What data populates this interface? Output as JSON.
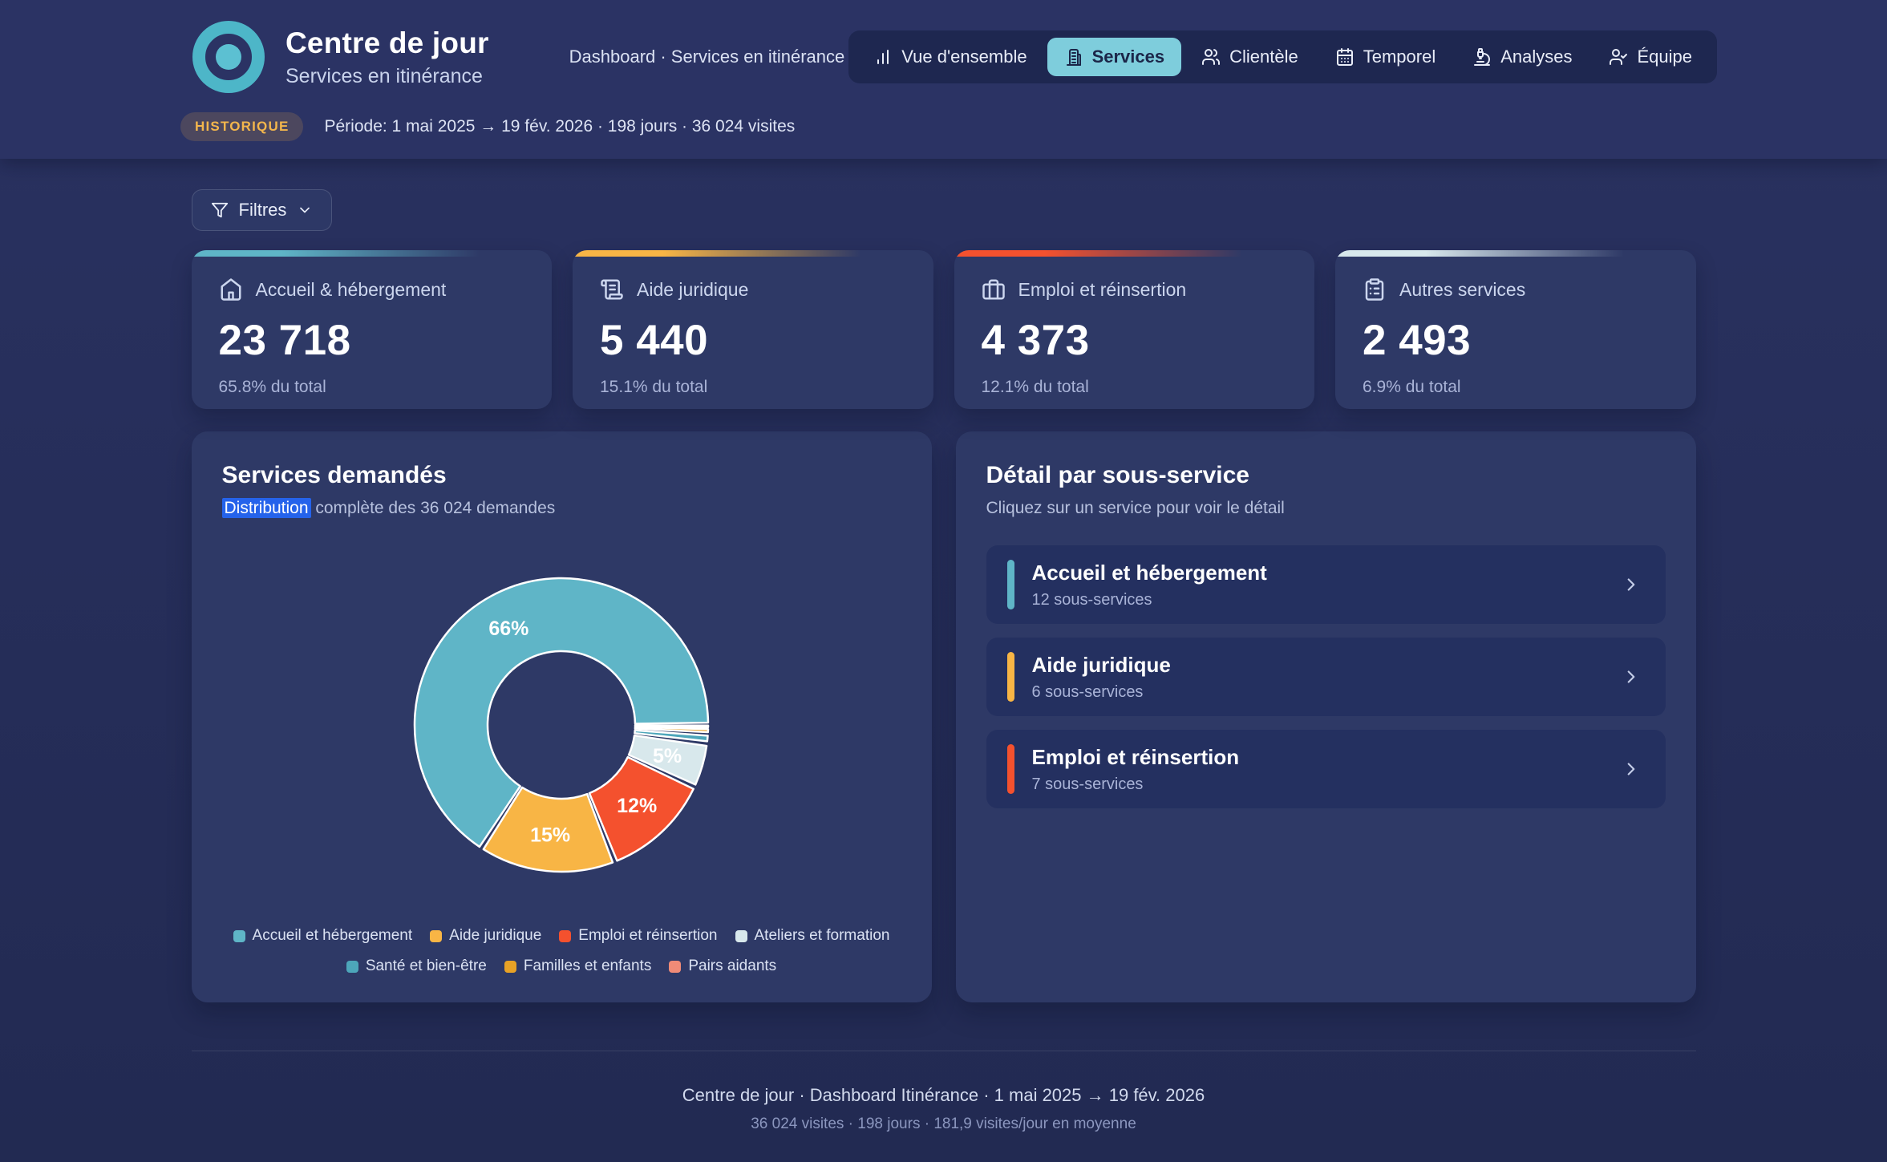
{
  "header": {
    "app_title": "Centre de jour",
    "app_subtitle": "Services en itinérance",
    "breadcrumb": "Dashboard · Services en itinérance",
    "nav": [
      {
        "label": "Vue d'ensemble",
        "icon": "bar-chart-icon",
        "active": false
      },
      {
        "label": "Services",
        "icon": "building-icon",
        "active": true
      },
      {
        "label": "Clientèle",
        "icon": "users-icon",
        "active": false
      },
      {
        "label": "Temporel",
        "icon": "calendar-icon",
        "active": false
      },
      {
        "label": "Analyses",
        "icon": "microscope-icon",
        "active": false
      },
      {
        "label": "Équipe",
        "icon": "user-check-icon",
        "active": false
      }
    ],
    "badge": "HISTORIQUE",
    "period": "Période: 1 mai 2025 → 19 fév. 2026 · 198 jours · 36 024 visites"
  },
  "filters": {
    "label": "Filtres"
  },
  "stat_cards": [
    {
      "label": "Accueil & hébergement",
      "value": "23 718",
      "share": "65.8% du total",
      "accent": "#5fb5c7",
      "icon": "home-icon"
    },
    {
      "label": "Aide juridique",
      "value": "5 440",
      "share": "15.1% du total",
      "accent": "#f8b545",
      "icon": "scroll-icon"
    },
    {
      "label": "Emploi et réinsertion",
      "value": "4 373",
      "share": "12.1% du total",
      "accent": "#f4512e",
      "icon": "briefcase-icon"
    },
    {
      "label": "Autres services",
      "value": "2 493",
      "share": "6.9% du total",
      "accent": "#d8e8ec",
      "icon": "clipboard-icon"
    }
  ],
  "services_chart": {
    "title": "Services demandés",
    "subtitle_highlight": "Distribution",
    "subtitle_rest": " complète des 36 024 demandes"
  },
  "chart_data": {
    "type": "pie",
    "title": "Services demandés",
    "categories": [
      "Accueil et hébergement",
      "Aide juridique",
      "Emploi et réinsertion",
      "Ateliers et formation",
      "Santé et bien-être",
      "Familles et enfants",
      "Pairs aidants"
    ],
    "values": [
      65.84,
      15.1,
      12.14,
      4.9,
      1.1,
      0.6,
      0.32
    ],
    "labels": [
      "66%",
      "15%",
      "12%",
      "5%",
      "",
      "",
      ""
    ],
    "colors": [
      "#5fb5c7",
      "#f8b545",
      "#f4512e",
      "#d8e8ec",
      "#4da6ba",
      "#e8a226",
      "#f08b77"
    ],
    "total_demandes": "36 024",
    "donut": true,
    "inner_radius_ratio": 0.5,
    "start_angle_deg": 0,
    "direction": "counterclockwise",
    "legend_position": "bottom"
  },
  "detail_panel": {
    "title": "Détail par sous-service",
    "subtitle": "Cliquez sur un service pour voir le détail",
    "items": [
      {
        "label": "Accueil et hébergement",
        "sublabel": "12 sous-services",
        "accent": "#5fb5c7"
      },
      {
        "label": "Aide juridique",
        "sublabel": "6 sous-services",
        "accent": "#f8b545"
      },
      {
        "label": "Emploi et réinsertion",
        "sublabel": "7 sous-services",
        "accent": "#f4512e"
      }
    ]
  },
  "footer": {
    "line1": "Centre de jour · Dashboard Itinérance · 1 mai 2025 → 19 fév. 2026",
    "line2": "36 024 visites · 198 jours · 181,9 visites/jour en moyenne"
  },
  "colors": {
    "page_bg": "#262e5a",
    "header_bg": "#2b3364",
    "card_bg": "#2e3966",
    "row_bg": "#243060",
    "nav_bg": "#1e2750",
    "active_tab_bg": "#7ecddc",
    "active_tab_text": "#1b2548",
    "badge_text": "#f3b64c",
    "highlight_bg": "#2563eb"
  }
}
